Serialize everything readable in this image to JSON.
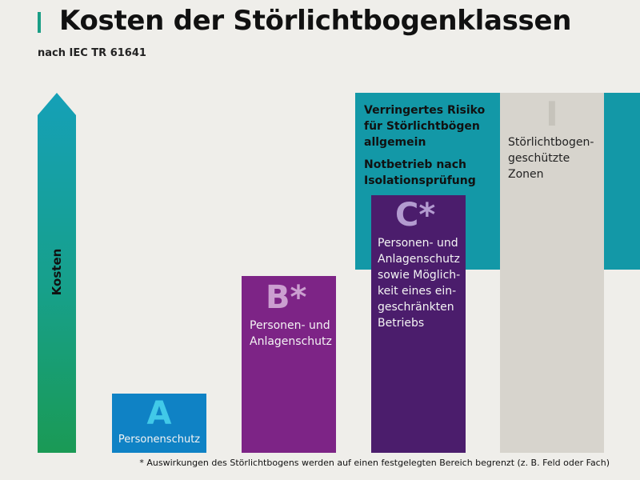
{
  "header": {
    "title": "Kosten der Störlichtbogenklassen",
    "subtitle": "nach IEC TR 61641"
  },
  "cost_axis": {
    "label": "Kosten"
  },
  "classes": [
    {
      "letter": "A",
      "description": "Personenschutz",
      "color": "#0f82c5"
    },
    {
      "letter": "B*",
      "description": "Personen- und\nAnlagenschutz",
      "color": "#7d2486"
    },
    {
      "letter": "C*",
      "description": "Personen- und\nAnlagenschutz\nsowie Möglich-\nkeit eines ein-\ngeschränkten\nBetriebs",
      "color": "#4b1d6c"
    },
    {
      "letter": "I",
      "description": "Störlichtbogen-\ngeschützte\nZonen",
      "color": "#d7d4cd"
    }
  ],
  "band": {
    "text1": "Verringertes Risiko\nfür Störlichtbögen\nallgemein",
    "text2": "Notbetrieb nach\nIsolationsprüfung",
    "color": "#1398a7"
  },
  "footnote": "* Auswirkungen des Störlichtbogens werden auf einen festgelegten Bereich begrenzt (z. B. Feld oder Fach)"
}
